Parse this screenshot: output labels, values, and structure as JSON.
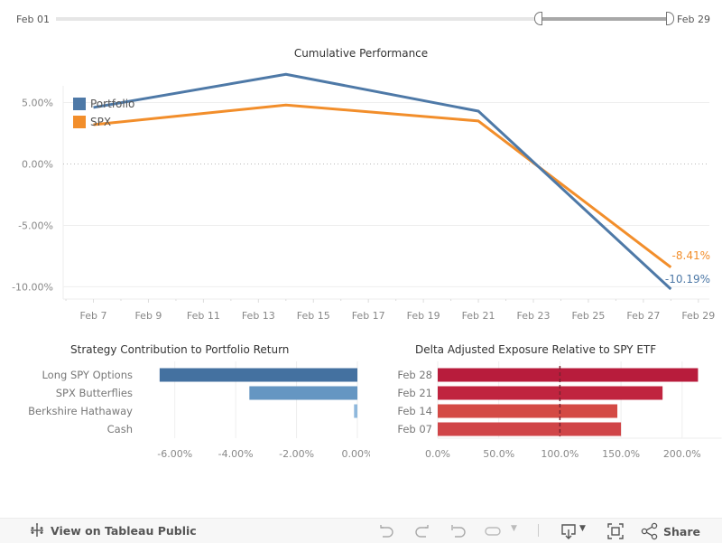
{
  "date_filter": {
    "start_label": "Feb 01",
    "end_label": "Feb 29",
    "range_total_days": 28,
    "selected_start_day": 23,
    "selected_end_day": 29
  },
  "colors": {
    "portfolio": "#4e79a7",
    "spx": "#f28e2b",
    "contrib_dark": "#4471a0",
    "contrib_mid": "#6596c2",
    "contrib_light": "#8fb8dc",
    "exposure_feb28": "#b81c3c",
    "exposure_feb21": "#c0243f",
    "exposure_feb14": "#d44a45",
    "exposure_feb07": "#d04548",
    "reference_line": "#7a2230"
  },
  "chart_data": [
    {
      "type": "line",
      "title": "Cumulative Performance",
      "xlabel": "",
      "ylabel": "",
      "x_tick_labels": [
        "Feb 7",
        "Feb 9",
        "Feb 11",
        "Feb 13",
        "Feb 15",
        "Feb 17",
        "Feb 19",
        "Feb 21",
        "Feb 23",
        "Feb 25",
        "Feb 27",
        "Feb 29"
      ],
      "x_tick_days": [
        7,
        9,
        11,
        13,
        15,
        17,
        19,
        21,
        23,
        25,
        27,
        29
      ],
      "x_range_days": [
        5.9,
        29.4
      ],
      "y_ticks": [
        5,
        0,
        -5,
        -10
      ],
      "y_tick_labels": [
        "5.00%",
        "0.00%",
        "-5.00%",
        "-10.00%"
      ],
      "ylim": [
        -11.0,
        8.2
      ],
      "legend": {
        "position": "top-left",
        "entries": [
          "Portfolio",
          "SPX"
        ]
      },
      "series": [
        {
          "name": "Portfolio",
          "x_days": [
            7,
            14,
            21,
            28
          ],
          "values": [
            4.6,
            7.3,
            4.3,
            -10.19
          ],
          "end_label": "-10.19%"
        },
        {
          "name": "SPX",
          "x_days": [
            7,
            14,
            21,
            28
          ],
          "values": [
            3.2,
            4.8,
            3.5,
            -8.41
          ],
          "end_label": "-8.41%"
        }
      ]
    },
    {
      "type": "bar",
      "orientation": "horizontal",
      "title": "Strategy Contribution to Portfolio Return",
      "categories": [
        "Long SPY Options",
        "SPX Butterflies",
        "Berkshire Hathaway",
        "Cash"
      ],
      "values": [
        -6.5,
        -3.55,
        -0.11,
        0.0
      ],
      "x_ticks": [
        -6,
        -4,
        -2,
        0
      ],
      "x_tick_labels": [
        "-6.00%",
        "-4.00%",
        "-2.00%",
        "0.00%"
      ],
      "xlim": [
        -7.0,
        0.0
      ]
    },
    {
      "type": "bar",
      "orientation": "horizontal",
      "title": "Delta Adjusted Exposure Relative to SPY ETF",
      "categories": [
        "Feb 28",
        "Feb 21",
        "Feb 14",
        "Feb 07"
      ],
      "values": [
        213,
        184,
        147,
        150
      ],
      "reference_line": 100,
      "x_ticks": [
        0,
        50,
        100,
        150,
        200
      ],
      "x_tick_labels": [
        "0.0%",
        "50.0%",
        "100.0%",
        "150.0%",
        "200.0%"
      ],
      "xlim": [
        0,
        225
      ]
    }
  ],
  "footer": {
    "view_label": "View on Tableau Public",
    "share_label": "Share"
  }
}
